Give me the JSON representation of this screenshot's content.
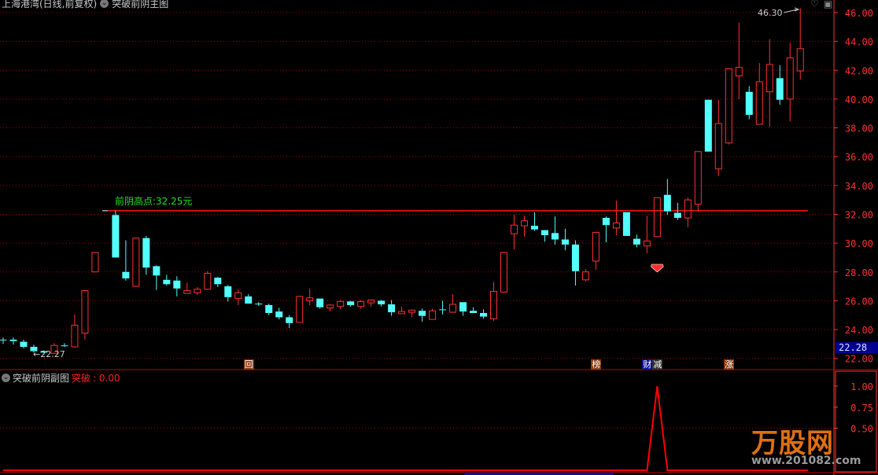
{
  "header": {
    "title": "上海港湾(日线,前复权)",
    "indicator_icon": "chevron-circle-icon",
    "indicator_name": "突破前阴主图",
    "right_icons": [
      "heart-outline-icon",
      "window-icon"
    ]
  },
  "main_chart": {
    "type": "candlestick",
    "y_ticks": [
      "46.00",
      "44.00",
      "42.00",
      "40.00",
      "38.00",
      "36.00",
      "34.00",
      "32.00",
      "30.00",
      "28.00",
      "26.00",
      "24.00",
      "22.00"
    ],
    "ylim": [
      22,
      46
    ],
    "current_price_label": "22.28",
    "high_label": "46.30",
    "low_label": "←22.27",
    "prev_yin_high_label": "前阴高点:32.25元",
    "prev_yin_high_value": 32.25,
    "colors": {
      "up": "#ff3030",
      "down": "#54ffff",
      "grid": "#a00000",
      "axis": "#ff3030",
      "label_green": "#20e020"
    },
    "candles": [
      [
        0,
        23.3,
        23.45,
        23.0,
        23.25
      ],
      [
        1,
        23.3,
        23.45,
        22.95,
        23.2
      ],
      [
        2,
        23.15,
        23.3,
        22.7,
        22.8
      ],
      [
        3,
        22.8,
        22.95,
        22.4,
        22.5
      ],
      [
        4,
        22.5,
        22.55,
        22.27,
        22.4
      ],
      [
        5,
        22.35,
        23.05,
        22.3,
        22.9
      ],
      [
        6,
        22.9,
        23.05,
        22.8,
        22.85
      ],
      [
        7,
        22.8,
        25.05,
        22.75,
        24.3
      ],
      [
        8,
        23.75,
        26.7,
        23.3,
        26.7
      ],
      [
        9,
        28.0,
        29.35,
        28.0,
        29.35
      ],
      [
        11,
        31.95,
        32.25,
        29.0,
        29.0
      ],
      [
        12,
        28.0,
        30.2,
        27.4,
        27.55
      ],
      [
        13,
        27.0,
        30.35,
        27.0,
        30.35
      ],
      [
        14,
        30.35,
        30.5,
        27.8,
        28.3
      ],
      [
        15,
        28.4,
        28.45,
        26.75,
        27.75
      ],
      [
        16,
        27.45,
        27.8,
        27.05,
        27.15
      ],
      [
        17,
        27.4,
        27.7,
        26.3,
        26.85
      ],
      [
        18,
        26.5,
        27.25,
        26.5,
        26.7
      ],
      [
        19,
        26.55,
        26.95,
        26.4,
        26.8
      ],
      [
        20,
        26.8,
        28.05,
        26.75,
        27.9
      ],
      [
        21,
        27.6,
        27.65,
        26.95,
        27.15
      ],
      [
        22,
        27.0,
        27.1,
        25.95,
        26.25
      ],
      [
        23,
        26.15,
        26.8,
        25.7,
        26.55
      ],
      [
        24,
        26.3,
        26.45,
        25.8,
        25.8
      ],
      [
        25,
        25.8,
        25.9,
        25.65,
        25.75
      ],
      [
        26,
        25.7,
        25.8,
        25.0,
        25.15
      ],
      [
        27,
        25.25,
        25.5,
        24.7,
        24.85
      ],
      [
        28,
        24.85,
        25.0,
        24.1,
        24.45
      ],
      [
        29,
        24.5,
        26.3,
        24.5,
        26.3
      ],
      [
        30,
        26.0,
        26.85,
        25.7,
        26.2
      ],
      [
        31,
        26.15,
        26.15,
        25.45,
        25.55
      ],
      [
        32,
        25.5,
        25.75,
        25.25,
        25.7
      ],
      [
        33,
        25.6,
        26.05,
        25.4,
        25.95
      ],
      [
        34,
        25.95,
        26.0,
        25.6,
        25.7
      ],
      [
        35,
        25.6,
        26.05,
        25.45,
        25.95
      ],
      [
        36,
        25.85,
        26.05,
        25.6,
        26.05
      ],
      [
        37,
        26.0,
        26.05,
        25.6,
        25.75
      ],
      [
        38,
        25.75,
        26.05,
        24.95,
        25.2
      ],
      [
        39,
        25.1,
        25.6,
        25.1,
        25.25
      ],
      [
        40,
        25.2,
        25.4,
        24.85,
        25.35
      ],
      [
        41,
        25.3,
        25.45,
        24.55,
        24.95
      ],
      [
        42,
        24.7,
        25.45,
        24.7,
        25.3
      ],
      [
        43,
        25.4,
        26.0,
        25.05,
        25.35
      ],
      [
        44,
        25.2,
        26.45,
        25.2,
        25.75
      ],
      [
        45,
        25.9,
        25.9,
        24.95,
        25.25
      ],
      [
        46,
        25.3,
        25.55,
        25.15,
        25.15
      ],
      [
        47,
        25.15,
        25.4,
        24.75,
        24.9
      ],
      [
        48,
        24.75,
        27.3,
        24.6,
        26.65
      ],
      [
        49,
        26.6,
        29.35,
        26.6,
        29.35
      ],
      [
        50,
        30.65,
        31.95,
        29.55,
        31.25
      ],
      [
        51,
        31.2,
        31.9,
        30.45,
        31.55
      ],
      [
        52,
        31.2,
        32.15,
        30.85,
        30.95
      ],
      [
        53,
        30.9,
        30.9,
        30.1,
        30.55
      ],
      [
        54,
        30.7,
        31.85,
        29.9,
        30.25
      ],
      [
        55,
        30.25,
        31.0,
        29.5,
        29.9
      ],
      [
        56,
        29.9,
        30.2,
        27.05,
        28.05
      ],
      [
        57,
        27.45,
        28.2,
        27.35,
        28.0
      ],
      [
        58,
        28.75,
        30.75,
        28.15,
        30.75
      ],
      [
        59,
        31.75,
        31.85,
        30.05,
        31.25
      ],
      [
        60,
        31.05,
        32.95,
        30.55,
        31.4
      ],
      [
        61,
        32.15,
        32.15,
        30.5,
        30.5
      ],
      [
        62,
        30.3,
        30.6,
        29.7,
        29.9
      ],
      [
        63,
        29.8,
        31.9,
        29.3,
        30.15
      ],
      [
        64,
        30.45,
        33.15,
        30.45,
        33.15
      ],
      [
        65,
        33.35,
        34.45,
        31.95,
        32.2
      ],
      [
        66,
        32.1,
        32.8,
        31.6,
        31.75
      ],
      [
        67,
        31.75,
        33.15,
        31.1,
        33.0
      ],
      [
        68,
        32.7,
        36.35,
        32.2,
        36.35
      ],
      [
        69,
        39.95,
        39.95,
        36.35,
        36.35
      ],
      [
        70,
        35.15,
        39.95,
        34.65,
        38.3
      ],
      [
        71,
        36.95,
        42.1,
        36.85,
        42.1
      ],
      [
        72,
        41.6,
        45.3,
        40.0,
        42.2
      ],
      [
        73,
        40.5,
        40.9,
        38.6,
        38.9
      ],
      [
        74,
        38.25,
        42.5,
        38.25,
        41.2
      ],
      [
        75,
        40.5,
        44.15,
        38.05,
        42.4
      ],
      [
        76,
        41.45,
        42.35,
        39.6,
        39.95
      ],
      [
        77,
        40.0,
        43.9,
        38.45,
        42.85
      ],
      [
        78,
        41.95,
        46.3,
        41.35,
        43.5
      ]
    ],
    "signals": [
      {
        "index": 24,
        "text": "回",
        "bg": "#8a3a10"
      },
      {
        "index": 58,
        "text": "榜",
        "bg": "#8a3a10"
      },
      {
        "index": 63,
        "text": "财",
        "bg": "#101090"
      },
      {
        "index": 64,
        "text": "减",
        "bg": "#303030"
      },
      {
        "index": 71,
        "text": "涨",
        "bg": "#8a3a10"
      }
    ],
    "gem_index": 64
  },
  "sub_chart": {
    "title": "突破前阴副图",
    "series_label": "突破",
    "series_value": ": 0.00",
    "y_ticks": [
      "1.00",
      "0.75",
      "0.50"
    ],
    "ylim": [
      0,
      1.1
    ],
    "breakout_signal": {
      "zero_from": 0,
      "zero_to": 78,
      "spike_index": 64,
      "spike_value": 1
    }
  },
  "watermark": {
    "logo_text": "万股网",
    "url_text": "www.201082.com"
  }
}
